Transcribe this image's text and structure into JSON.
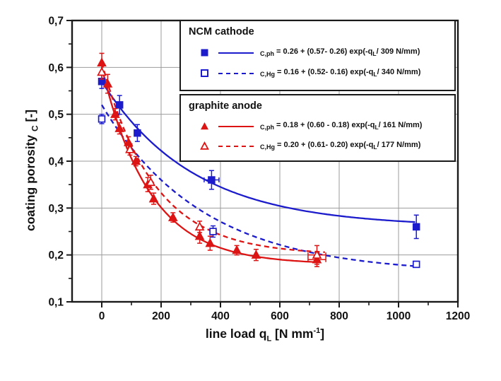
{
  "figure": {
    "x_axis": {
      "label_parts": {
        "pre": "line load q",
        "sub": "L",
        "mid": " [N mm",
        "sup": "-1",
        "post": "]"
      }
    },
    "y_axis": {
      "label_parts": {
        "pre": "coating porosity ",
        "sub": "C",
        "post": " [-]"
      }
    },
    "colors": {
      "blue": "#1c1ccc",
      "red": "#dd1414",
      "grid": "#9b9b9b",
      "frame": "#1a1a1a",
      "text": "#111111"
    }
  },
  "legend": {
    "groups": [
      {
        "title": "NCM cathode",
        "rows": [
          {
            "marker": "blue-square-filled",
            "line": "solid",
            "sub": "C,ph",
            "formula_pre": " = 0.26 + (0.57- 0.26) exp(-q",
            "formula_sub": "L",
            "formula_post": "/ 309 N/mm)"
          },
          {
            "marker": "blue-square-open",
            "line": "dashed",
            "sub": "C,Hg",
            "formula_pre": " = 0.16 + (0.52- 0.16) exp(-q",
            "formula_sub": "L",
            "formula_post": "/ 340 N/mm)"
          }
        ]
      },
      {
        "title": "graphite anode",
        "rows": [
          {
            "marker": "red-triangle-filled",
            "line": "solid",
            "sub": "C,ph",
            "formula_pre": " = 0.18 + (0.60 - 0.18) exp(-q",
            "formula_sub": "L",
            "formula_post": "/ 161 N/mm)"
          },
          {
            "marker": "red-triangle-open",
            "line": "dashed",
            "sub": "C,Hg",
            "formula_pre": " = 0.20 + (0.61- 0.20) exp(-q",
            "formula_sub": "L",
            "formula_post": "/ 177 N/mm)"
          }
        ]
      }
    ]
  },
  "chart_data": {
    "type": "scatter",
    "title": "",
    "xlabel": "line load q_L [N mm⁻¹]",
    "ylabel": "coating porosity ε_C [-]",
    "xlim": [
      -100,
      1200
    ],
    "ylim": [
      0.1,
      0.7
    ],
    "grid": true,
    "legend_position": "top-right",
    "x_major_ticks": [
      0,
      200,
      400,
      600,
      800,
      1000,
      1200
    ],
    "x_minor_ticks": [
      100,
      300,
      500,
      700,
      900,
      1100
    ],
    "x_tick_labels": [
      "0",
      "200",
      "400",
      "600",
      "800",
      "1000",
      "1200"
    ],
    "y_major_ticks": [
      0.1,
      0.2,
      0.3,
      0.4,
      0.5,
      0.6,
      0.7
    ],
    "y_minor_ticks": [
      0.15,
      0.25,
      0.35,
      0.45,
      0.55,
      0.65
    ],
    "y_tick_labels": [
      "0,1",
      "0,2",
      "0,3",
      "0,4",
      "0,5",
      "0,6",
      "0,7"
    ],
    "series": [
      {
        "name": "NCM cathode ε_C,ph",
        "color": "#1c1ccc",
        "marker": "square",
        "filled": true,
        "line": "solid",
        "fit": {
          "y0": 0.26,
          "amplitude": 0.31,
          "tau": 309,
          "formula": "ε_C,ph = 0.26 + (0.57-0.26) exp(-qL / 309 N/mm)",
          "x_start": 0,
          "x_end": 1062
        },
        "points": [
          {
            "x": 0,
            "y": 0.57,
            "ey": 0.015
          },
          {
            "x": 60,
            "y": 0.52,
            "ey": 0.02
          },
          {
            "x": 120,
            "y": 0.46,
            "ey": 0.018
          },
          {
            "x": 370,
            "y": 0.36,
            "ex": 25,
            "ey": 0.02
          },
          {
            "x": 1060,
            "y": 0.26,
            "ey": 0.025
          }
        ]
      },
      {
        "name": "NCM cathode ε_C,Hg",
        "color": "#1c1ccc",
        "marker": "square",
        "filled": false,
        "line": "dashed",
        "fit": {
          "y0": 0.16,
          "amplitude": 0.36,
          "tau": 340,
          "formula": "ε_C,Hg = 0.16 + (0.52-0.16) exp(-qL / 340 N/mm)",
          "x_start": 0,
          "x_end": 1062
        },
        "points": [
          {
            "x": 0,
            "y": 0.49,
            "ey": 0.01
          },
          {
            "x": 375,
            "y": 0.25,
            "ey": 0.012
          },
          {
            "x": 1060,
            "y": 0.18
          }
        ]
      },
      {
        "name": "graphite anode ε_C,ph",
        "color": "#dd1414",
        "marker": "triangle",
        "filled": true,
        "line": "solid",
        "fit": {
          "y0": 0.18,
          "amplitude": 0.42,
          "tau": 161,
          "formula": "ε_C,ph = 0.18 + (0.60-0.18) exp(-qL / 161 N/mm)",
          "x_start": 0,
          "x_end": 730
        },
        "points": [
          {
            "x": 0,
            "y": 0.61,
            "ey": 0.02
          },
          {
            "x": 20,
            "y": 0.565,
            "ey": 0.02
          },
          {
            "x": 45,
            "y": 0.5,
            "ey": 0.012
          },
          {
            "x": 60,
            "y": 0.47,
            "ey": 0.012
          },
          {
            "x": 90,
            "y": 0.44,
            "ey": 0.012
          },
          {
            "x": 115,
            "y": 0.4,
            "ey": 0.01
          },
          {
            "x": 155,
            "y": 0.35,
            "ey": 0.015
          },
          {
            "x": 175,
            "y": 0.32,
            "ey": 0.012
          },
          {
            "x": 240,
            "y": 0.28,
            "ey": 0.01
          },
          {
            "x": 330,
            "y": 0.24,
            "ey": 0.015
          },
          {
            "x": 365,
            "y": 0.225,
            "ey": 0.015
          },
          {
            "x": 455,
            "y": 0.21,
            "ey": 0.01
          },
          {
            "x": 520,
            "y": 0.2,
            "ey": 0.012
          },
          {
            "x": 725,
            "y": 0.19,
            "ex": 30,
            "ey": 0.015
          }
        ]
      },
      {
        "name": "graphite anode ε_C,Hg",
        "color": "#dd1414",
        "marker": "triangle",
        "filled": false,
        "line": "dashed",
        "fit": {
          "y0": 0.2,
          "amplitude": 0.41,
          "tau": 177,
          "formula": "ε_C,Hg = 0.20 + (0.61-0.20) exp(-qL / 177 N/mm)",
          "x_start": 0,
          "x_end": 755
        },
        "points": [
          {
            "x": 0,
            "y": 0.59,
            "ey": 0.015
          },
          {
            "x": 95,
            "y": 0.425,
            "ey": 0.012
          },
          {
            "x": 165,
            "y": 0.355,
            "ey": 0.015
          },
          {
            "x": 330,
            "y": 0.26,
            "ey": 0.012
          },
          {
            "x": 725,
            "y": 0.2,
            "ex": 30,
            "ey": 0.02
          }
        ]
      }
    ]
  }
}
